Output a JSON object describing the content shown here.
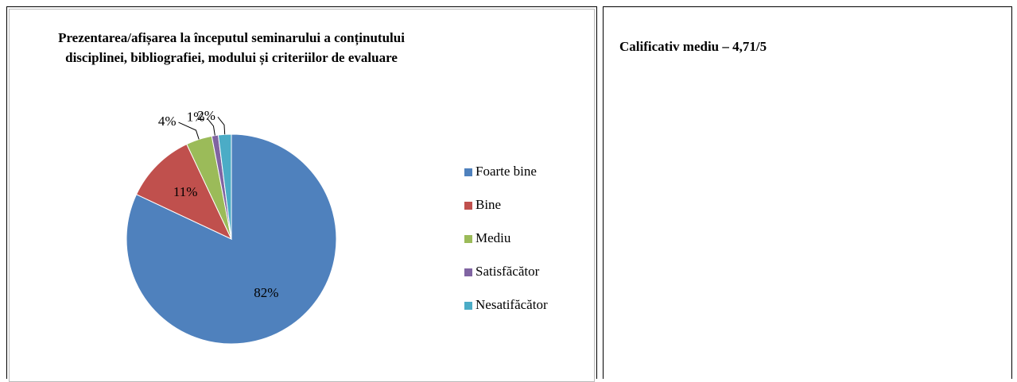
{
  "chart_data": {
    "type": "pie",
    "title": "Prezentarea/afișarea la începutul seminarului a conținutului disciplinei, bibliografiei, modului și criteriilor de evaluare",
    "categories": [
      "Foarte bine",
      "Bine",
      "Mediu",
      "Satisfăcător",
      "Nesatifăcător"
    ],
    "values": [
      82,
      11,
      4,
      1,
      2
    ],
    "value_labels": [
      "82%",
      "11%",
      "4%",
      "1%",
      "2%"
    ],
    "colors": [
      "#4f81bd",
      "#c0504d",
      "#9bbb59",
      "#8064a2",
      "#4bacc6"
    ],
    "legend": "right"
  },
  "note": "Calificativ mediu – 4,71/5"
}
